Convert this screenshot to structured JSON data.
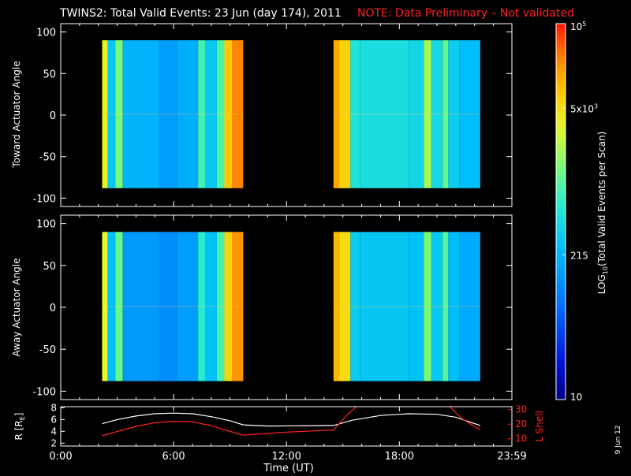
{
  "title": {
    "main": "TWINS2: Total Valid Events: 23 Jun (day 174), 2011",
    "note": "NOTE: Data Preliminary – Not validated"
  },
  "colors": {
    "background": "#000000",
    "foreground": "#ffffff",
    "note": "#ff2020",
    "lshell": "#ff2020",
    "r_trace": "#ffffff"
  },
  "chart_data": [
    {
      "type": "heatmap",
      "panel": "toward",
      "ylabel": "Toward Actuator Angle",
      "ylim": [
        -110,
        110
      ],
      "xlim": [
        0,
        23.983
      ],
      "yticks": [
        "100",
        "50",
        "0",
        "-50",
        "-100"
      ],
      "ytick_values": [
        100,
        50,
        0,
        -50,
        -100
      ],
      "angle_range": [
        -88,
        90
      ],
      "data_intervals": [
        [
          2.2,
          9.7
        ],
        [
          14.5,
          22.3
        ]
      ],
      "column_levels": [
        {
          "t0": 2.2,
          "t1": 2.5,
          "level": 0.74
        },
        {
          "t0": 2.5,
          "t1": 2.9,
          "level": 0.42
        },
        {
          "t0": 2.9,
          "t1": 3.3,
          "level": 0.62
        },
        {
          "t0": 3.3,
          "t1": 5.2,
          "level": 0.38
        },
        {
          "t0": 5.2,
          "t1": 6.2,
          "level": 0.34
        },
        {
          "t0": 6.2,
          "t1": 7.3,
          "level": 0.37
        },
        {
          "t0": 7.3,
          "t1": 7.7,
          "level": 0.55
        },
        {
          "t0": 7.7,
          "t1": 8.3,
          "level": 0.43
        },
        {
          "t0": 8.3,
          "t1": 8.7,
          "level": 0.57
        },
        {
          "t0": 8.7,
          "t1": 9.1,
          "level": 0.82
        },
        {
          "t0": 9.1,
          "t1": 9.7,
          "level": 0.9
        },
        {
          "t0": 14.5,
          "t1": 14.8,
          "level": 0.86
        },
        {
          "t0": 14.8,
          "t1": 15.4,
          "level": 0.8
        },
        {
          "t0": 15.4,
          "t1": 15.9,
          "level": 0.5
        },
        {
          "t0": 15.9,
          "t1": 18.5,
          "level": 0.48
        },
        {
          "t0": 18.5,
          "t1": 19.3,
          "level": 0.46
        },
        {
          "t0": 19.3,
          "t1": 19.7,
          "level": 0.66
        },
        {
          "t0": 19.7,
          "t1": 20.3,
          "level": 0.47
        },
        {
          "t0": 20.3,
          "t1": 20.6,
          "level": 0.6
        },
        {
          "t0": 20.6,
          "t1": 21.2,
          "level": 0.44
        },
        {
          "t0": 21.2,
          "t1": 22.3,
          "level": 0.4
        }
      ]
    },
    {
      "type": "heatmap",
      "panel": "away",
      "ylabel": "Away Actuator Angle",
      "ylim": [
        -110,
        110
      ],
      "xlim": [
        0,
        23.983
      ],
      "yticks": [
        "100",
        "50",
        "0",
        "-50",
        "-100"
      ],
      "ytick_values": [
        100,
        50,
        0,
        -50,
        -100
      ],
      "angle_range": [
        -88,
        90
      ],
      "data_intervals": [
        [
          2.2,
          9.7
        ],
        [
          14.5,
          22.3
        ]
      ],
      "column_levels": [
        {
          "t0": 2.2,
          "t1": 2.5,
          "level": 0.72
        },
        {
          "t0": 2.5,
          "t1": 2.9,
          "level": 0.4
        },
        {
          "t0": 2.9,
          "t1": 3.3,
          "level": 0.6
        },
        {
          "t0": 3.3,
          "t1": 5.2,
          "level": 0.33
        },
        {
          "t0": 5.2,
          "t1": 6.2,
          "level": 0.31
        },
        {
          "t0": 6.2,
          "t1": 7.3,
          "level": 0.34
        },
        {
          "t0": 7.3,
          "t1": 7.7,
          "level": 0.52
        },
        {
          "t0": 7.7,
          "t1": 8.3,
          "level": 0.41
        },
        {
          "t0": 8.3,
          "t1": 8.7,
          "level": 0.56
        },
        {
          "t0": 8.7,
          "t1": 9.1,
          "level": 0.8
        },
        {
          "t0": 9.1,
          "t1": 9.7,
          "level": 0.88
        },
        {
          "t0": 14.5,
          "t1": 14.8,
          "level": 0.84
        },
        {
          "t0": 14.8,
          "t1": 15.4,
          "level": 0.78
        },
        {
          "t0": 15.4,
          "t1": 15.9,
          "level": 0.44
        },
        {
          "t0": 15.9,
          "t1": 18.5,
          "level": 0.42
        },
        {
          "t0": 18.5,
          "t1": 19.3,
          "level": 0.41
        },
        {
          "t0": 19.3,
          "t1": 19.7,
          "level": 0.62
        },
        {
          "t0": 19.7,
          "t1": 20.3,
          "level": 0.43
        },
        {
          "t0": 20.3,
          "t1": 20.6,
          "level": 0.58
        },
        {
          "t0": 20.6,
          "t1": 21.2,
          "level": 0.4
        },
        {
          "t0": 21.2,
          "t1": 22.3,
          "level": 0.36
        }
      ]
    },
    {
      "type": "line",
      "panel": "orbit",
      "xlabel": "Time (UT)",
      "xticks": [
        "0:00",
        "6:00",
        "12:00",
        "18:00",
        "23:59"
      ],
      "xtick_values": [
        0,
        6,
        12,
        18,
        23.983
      ],
      "xlim": [
        0,
        23.983
      ],
      "left_axis": {
        "label_base": "R [R",
        "label_sub": "E",
        "label_end": "]",
        "ylim": [
          1.5,
          8.2
        ],
        "yticks": [
          "8",
          "6",
          "4",
          "2"
        ],
        "ytick_values": [
          8,
          6,
          4,
          2
        ]
      },
      "right_axis": {
        "label": "L Shell",
        "ylim": [
          5,
          32
        ],
        "yticks": [
          "30",
          "20",
          "10"
        ],
        "ytick_values": [
          30,
          20,
          10
        ]
      },
      "series": [
        {
          "axis": "left",
          "x": [
            2.2,
            3.0,
            4.0,
            5.0,
            6.0,
            7.0,
            8.0,
            9.0,
            9.7,
            11.0,
            12.5,
            14.5,
            15.5,
            17.0,
            18.5,
            20.0,
            21.0,
            22.3
          ],
          "y": [
            5.3,
            6.0,
            6.6,
            7.0,
            7.1,
            7.0,
            6.5,
            5.8,
            5.1,
            4.9,
            4.95,
            5.0,
            5.9,
            6.7,
            7.0,
            6.9,
            6.4,
            5.0
          ]
        },
        {
          "axis": "right",
          "x": [
            2.2,
            3.0,
            4.0,
            5.0,
            6.0,
            7.0,
            8.0,
            9.0,
            9.7,
            12.0,
            14.5,
            15.2,
            15.8,
            20.6,
            21.3,
            22.3
          ],
          "y": [
            12.0,
            15.0,
            18.5,
            21.0,
            22.0,
            21.5,
            19.0,
            15.0,
            12.5,
            14.5,
            16.0,
            26.0,
            33.0,
            33.0,
            24.0,
            16.0
          ]
        }
      ]
    }
  ],
  "colorbar": {
    "ylabel_base": "LOG",
    "ylabel_sub": "10",
    "ylabel_end": "(Total Valid Events per Scan)",
    "ticks": [
      {
        "base": "10",
        "exp": "",
        "level": 0.0
      },
      {
        "base": "215",
        "exp": "",
        "level": 0.385
      },
      {
        "base": "5x10",
        "exp": "3",
        "level": 0.775
      },
      {
        "base": "10",
        "exp": "5",
        "level": 1.0
      }
    ]
  },
  "footer_date": "9 Jun 12"
}
